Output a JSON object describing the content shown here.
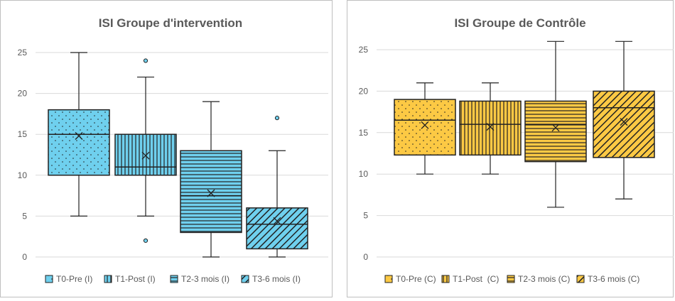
{
  "colors": {
    "intervention_fill": "#6fd0ee",
    "control_fill": "#fcc944",
    "stroke": "#222222",
    "grid": "#d9d9d9",
    "axis_text": "#595959",
    "title_text": "#595959",
    "frame": "#bfbfbf"
  },
  "chart_data": [
    {
      "type": "box",
      "title": "ISI Groupe d'intervention",
      "ylim": [
        0,
        25
      ],
      "yticks": [
        "0",
        "5",
        "10",
        "15",
        "20",
        "25"
      ],
      "grid": true,
      "legend_position": "bottom",
      "fill_color": "#6fd0ee",
      "series": [
        {
          "name": "T0-Pre (I)",
          "pattern": "dots",
          "min": 5,
          "q1": 10,
          "median": 15,
          "q3": 18,
          "max": 25,
          "mean": 14.8,
          "outliers": []
        },
        {
          "name": "T1-Post (I)",
          "pattern": "vertical",
          "min": 5,
          "q1": 10,
          "median": 11,
          "q3": 15,
          "max": 22,
          "mean": 12.4,
          "outliers": [
            24,
            2
          ]
        },
        {
          "name": "T2-3 mois (I)",
          "pattern": "horizontal",
          "min": 0,
          "q1": 3,
          "median": 7.5,
          "q3": 13,
          "max": 19,
          "mean": 7.8,
          "outliers": []
        },
        {
          "name": "T3-6 mois (I)",
          "pattern": "diagonal",
          "min": 0,
          "q1": 1,
          "median": 4,
          "q3": 6,
          "max": 13,
          "mean": 4.4,
          "outliers": [
            17
          ]
        }
      ]
    },
    {
      "type": "box",
      "title": "ISI Groupe de Contrôle",
      "ylim": [
        0,
        25
      ],
      "yticks": [
        "0",
        "5",
        "10",
        "15",
        "20",
        "25"
      ],
      "grid": true,
      "legend_position": "bottom",
      "fill_color": "#fcc944",
      "series": [
        {
          "name": "T0-Pre (C)",
          "pattern": "dots",
          "min": 10,
          "q1": 12.3,
          "median": 16.5,
          "q3": 19,
          "max": 21,
          "mean": 15.9,
          "outliers": []
        },
        {
          "name": "T1-Post  (C)",
          "pattern": "vertical",
          "min": 10,
          "q1": 12.3,
          "median": 16,
          "q3": 18.8,
          "max": 21,
          "mean": 15.7,
          "outliers": []
        },
        {
          "name": "T2-3 mois (C)",
          "pattern": "horizontal",
          "min": 6,
          "q1": 11.5,
          "median": 16,
          "q3": 18.8,
          "max": 26,
          "mean": 15.6,
          "outliers": []
        },
        {
          "name": "T3-6 mois (C)",
          "pattern": "diagonal",
          "min": 7,
          "q1": 12,
          "median": 18,
          "q3": 20,
          "max": 26,
          "mean": 16.3,
          "outliers": []
        }
      ]
    }
  ]
}
